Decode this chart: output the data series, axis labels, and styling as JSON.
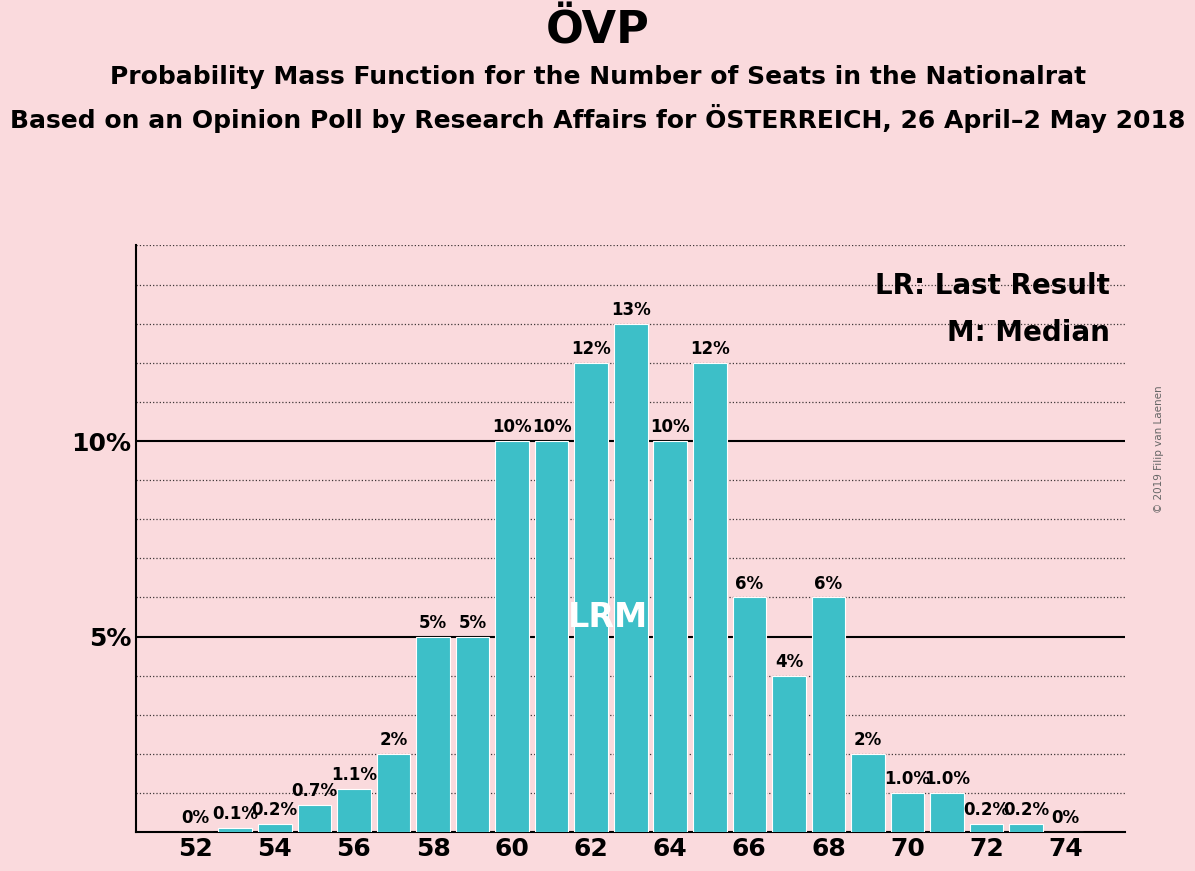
{
  "title": "ÖVP",
  "subtitle1": "Probability Mass Function for the Number of Seats in the Nationalrat",
  "subtitle2": "Based on an Opinion Poll by Research Affairs for ÖSTERREICH, 26 April–2 May 2018",
  "watermark": "© 2019 Filip van Laenen",
  "legend_lr": "LR: Last Result",
  "legend_m": "M: Median",
  "seats": [
    52,
    53,
    54,
    55,
    56,
    57,
    58,
    59,
    60,
    61,
    62,
    63,
    64,
    65,
    66,
    67,
    68,
    69,
    70,
    71,
    72,
    73,
    74
  ],
  "probabilities": [
    0.0,
    0.1,
    0.2,
    0.7,
    1.1,
    2.0,
    5.0,
    5.0,
    10.0,
    10.0,
    12.0,
    13.0,
    10.0,
    12.0,
    6.0,
    4.0,
    6.0,
    2.0,
    1.0,
    1.0,
    0.2,
    0.2,
    0.0
  ],
  "bar_labels": [
    "0%",
    "0.1%",
    "0.2%",
    "0.7%",
    "1.1%",
    "2%",
    "5%",
    "5%",
    "10%",
    "10%",
    "12%",
    "13%",
    "10%",
    "12%",
    "6%",
    "4%",
    "6%",
    "2%",
    "1.0%",
    "1.0%",
    "0.2%",
    "0.2%",
    "0%"
  ],
  "bar_color": "#3DBFC8",
  "background_color": "#FADADD",
  "lr_seat": 62,
  "median_seat": 63,
  "lr_label": "LR",
  "median_label": "M",
  "xtick_positions": [
    52,
    54,
    56,
    58,
    60,
    62,
    64,
    66,
    68,
    70,
    72,
    74
  ],
  "title_fontsize": 32,
  "subtitle_fontsize": 18,
  "tick_fontsize": 18,
  "legend_fontsize": 20,
  "bar_label_fontsize": 12,
  "inbar_fontsize": 24
}
